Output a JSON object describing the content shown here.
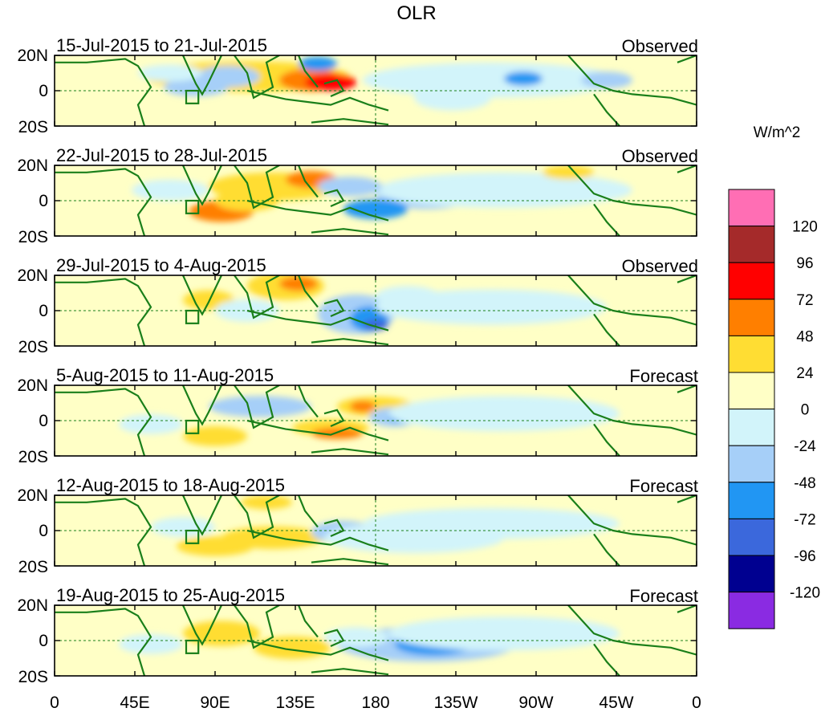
{
  "title": "OLR",
  "panels": [
    {
      "period": "15-Jul-2015 to 21-Jul-2015",
      "status": "Observed"
    },
    {
      "period": "22-Jul-2015 to 28-Jul-2015",
      "status": "Observed"
    },
    {
      "period": "29-Jul-2015 to 4-Aug-2015",
      "status": "Observed"
    },
    {
      "period": "5-Aug-2015 to 11-Aug-2015",
      "status": "Forecast"
    },
    {
      "period": "12-Aug-2015 to 18-Aug-2015",
      "status": "Forecast"
    },
    {
      "period": "19-Aug-2015 to 25-Aug-2015",
      "status": "Forecast"
    }
  ],
  "lat_labels": [
    "20N",
    "0",
    "20S"
  ],
  "lon_labels": [
    "0",
    "45E",
    "90E",
    "135E",
    "180",
    "135W",
    "90W",
    "45W",
    "0"
  ],
  "colorbar": {
    "unit": "W/m^2",
    "labels": [
      "120",
      "96",
      "72",
      "48",
      "24",
      "0",
      "-24",
      "-48",
      "-72",
      "-96",
      "-120"
    ],
    "colors": [
      "#ff6eb4",
      "#a52a2a",
      "#ff0000",
      "#ff7f00",
      "#ffdd33",
      "#ffffc6",
      "#d2f4fa",
      "#a6cff8",
      "#2196f3",
      "#3b68dc",
      "#000090",
      "#8a2be2"
    ]
  }
}
